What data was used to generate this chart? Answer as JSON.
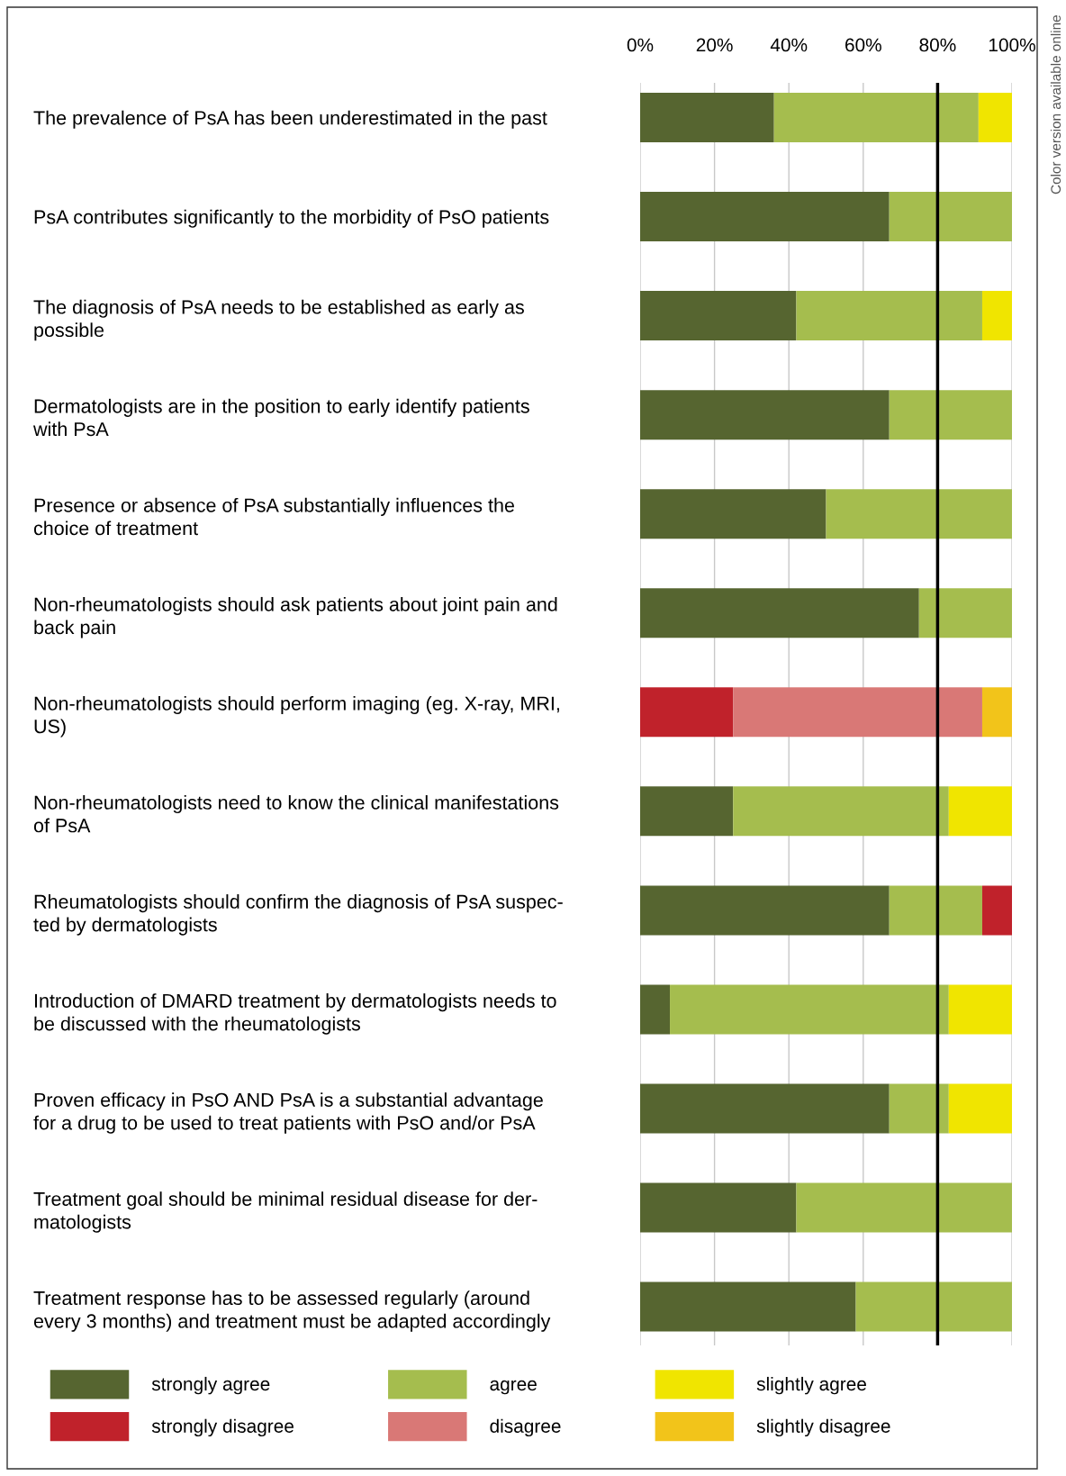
{
  "chart_data": {
    "type": "bar",
    "orientation": "horizontal",
    "stacked": true,
    "grid": "x",
    "legend": "bottom",
    "categories": [
      "The prevalence of PsA has been underestimated in the past",
      "PsA contributes significantly to the morbidity of PsO patients",
      "The diagnosis of PsA needs to be established as early as\npossible",
      "Dermatologists are in the position to early identify patients\nwith PsA",
      "Presence or absence of PsA substantially influences the\nchoice of treatment",
      "Non-rheumatologists should ask patients about joint pain and\nback pain",
      "Non-rheumatologists should perform imaging (eg. X-ray, MRI,\nUS)",
      "Non-rheumatologists need to know the clinical manifestations\nof PsA",
      "Rheumatologists should confirm the diagnosis of PsA suspec-\nted by dermatologists",
      "Introduction of DMARD treatment by dermatologists needs to\nbe discussed with the rheumatologists",
      "Proven efficacy in PsO AND PsA is a substantial advantage\nfor a drug to be used to treat patients with PsO and/or PsA",
      "Treatment goal should be minimal residual disease for der-\nmatologists",
      "Treatment response has to be assessed regularly (around\nevery 3 months) and treatment must be adapted accordingly"
    ],
    "series": [
      {
        "name": "strongly agree",
        "color": "#566530",
        "values": [
          36,
          67,
          42,
          67,
          50,
          75,
          0,
          25,
          67,
          8,
          67,
          42,
          58
        ]
      },
      {
        "name": "agree",
        "color": "#a5bd4e",
        "values": [
          55,
          33,
          50,
          33,
          50,
          25,
          0,
          58,
          25,
          75,
          16,
          58,
          42
        ]
      },
      {
        "name": "slightly agree",
        "color": "#f0e500",
        "values": [
          9,
          0,
          8,
          0,
          0,
          0,
          0,
          17,
          0,
          17,
          17,
          0,
          0
        ]
      },
      {
        "name": "strongly disagree",
        "color": "#c0222b",
        "values": [
          0,
          0,
          0,
          0,
          0,
          0,
          25,
          0,
          8,
          0,
          0,
          0,
          0
        ]
      },
      {
        "name": "disagree",
        "color": "#d97876",
        "values": [
          0,
          0,
          0,
          0,
          0,
          0,
          67,
          0,
          0,
          0,
          0,
          0,
          0
        ]
      },
      {
        "name": "slightly disagree",
        "color": "#f2c41a",
        "values": [
          0,
          0,
          0,
          0,
          0,
          0,
          8,
          0,
          0,
          0,
          0,
          0,
          0
        ]
      }
    ],
    "xlim": [
      0,
      100
    ],
    "xticks": [
      {
        "value": 0,
        "label": "0%"
      },
      {
        "value": 20,
        "label": "20%"
      },
      {
        "value": 40,
        "label": "40%"
      },
      {
        "value": 60,
        "label": "60%"
      },
      {
        "value": 80,
        "label": "80%"
      },
      {
        "value": 100,
        "label": "100%"
      }
    ],
    "ref_lines": [
      {
        "axis": "x",
        "value": 80,
        "color": "#000000"
      }
    ],
    "annotations": [
      "Color version available online"
    ]
  }
}
